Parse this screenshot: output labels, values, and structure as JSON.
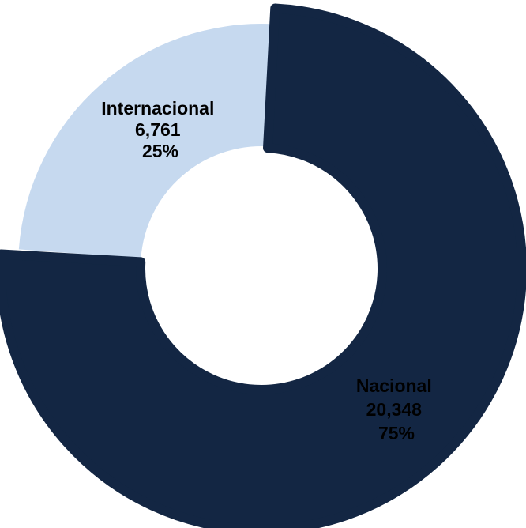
{
  "chart_data": {
    "type": "pie",
    "subtype": "donut",
    "slices": [
      {
        "label": "Nacional",
        "value": 20348,
        "value_text": "20,348",
        "percent_text": "75%",
        "color": "#132643",
        "text_color": "#ffffff"
      },
      {
        "label": "Internacional",
        "value": 6761,
        "value_text": "6,761",
        "percent_text": "25%",
        "color": "#c6d9ef",
        "text_color": "#132643"
      }
    ],
    "legend": "none"
  }
}
